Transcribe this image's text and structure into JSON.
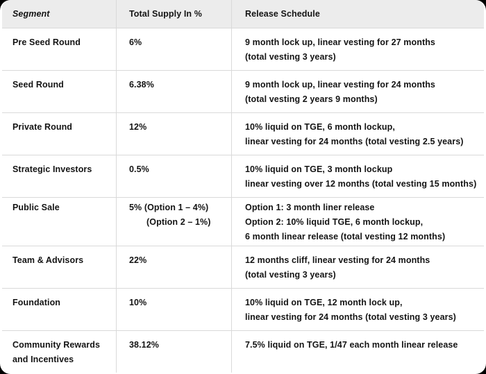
{
  "table": {
    "colors": {
      "page_background": "#000000",
      "card_background": "#ffffff",
      "header_background": "#ececec",
      "border": "#d9d9d9",
      "text": "#141414"
    },
    "columns": [
      {
        "label": "Segment",
        "italic": true
      },
      {
        "label": "Total Supply In %",
        "italic": false
      },
      {
        "label": "Release Schedule",
        "italic": false
      }
    ],
    "rows": [
      {
        "segment": [
          "Pre Seed Round"
        ],
        "supply": [
          "6%"
        ],
        "release": [
          "9 month lock up, linear vesting for 27 months",
          "(total vesting 3 years)"
        ]
      },
      {
        "segment": [
          "Seed Round"
        ],
        "supply": [
          "6.38%"
        ],
        "release": [
          "9 month lock up, linear vesting for 24 months",
          "(total vesting 2 years 9 months)"
        ]
      },
      {
        "segment": [
          "Private Round"
        ],
        "supply": [
          "12%"
        ],
        "release": [
          "10% liquid on TGE, 6 month lockup,",
          "linear vesting for 24 months (total vesting 2.5 years)"
        ]
      },
      {
        "segment": [
          "Strategic Investors"
        ],
        "supply": [
          "0.5%"
        ],
        "release": [
          "10% liquid on TGE, 3 month lockup",
          "linear vesting over 12 months (total vesting 15 months)"
        ]
      },
      {
        "segment": [
          "Public Sale"
        ],
        "supply": [
          "5% (Option 1 – 4%)",
          "(Option 2 – 1%)"
        ],
        "release": [
          "Option 1: 3 month liner release",
          "Option 2: 10% liquid TGE, 6 month lockup,",
          "6 month linear release (total vesting 12 months)"
        ],
        "tall": true
      },
      {
        "segment": [
          "Team & Advisors"
        ],
        "supply": [
          "22%"
        ],
        "release": [
          "12 months cliff, linear vesting for 24 months",
          "(total vesting 3 years)"
        ]
      },
      {
        "segment": [
          "Foundation"
        ],
        "supply": [
          "10%"
        ],
        "release": [
          "10% liquid on TGE, 12 month lock up,",
          "linear vesting for 24 months (total vesting 3 years)"
        ]
      },
      {
        "segment": [
          "Community Rewards",
          "and Incentives"
        ],
        "supply": [
          "38.12%"
        ],
        "release": [
          "7.5% liquid on TGE, 1/47 each month linear release"
        ]
      }
    ]
  }
}
